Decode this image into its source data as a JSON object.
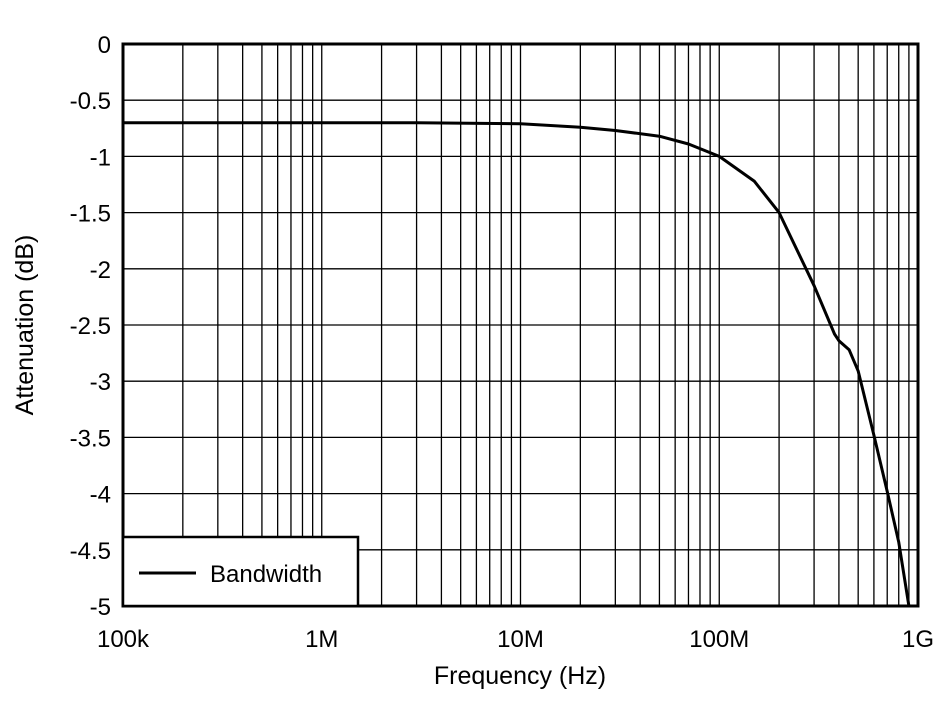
{
  "chart_data": {
    "type": "line",
    "title": "",
    "xlabel": "Frequency (Hz)",
    "ylabel": "Attenuation (dB)",
    "x_scale": "log",
    "xlim": [
      100000,
      1000000000
    ],
    "ylim": [
      -5,
      0
    ],
    "grid": true,
    "legend_position": "bottom-left",
    "x_ticks": [
      {
        "value": 100000,
        "label": "100k"
      },
      {
        "value": 1000000,
        "label": "1M"
      },
      {
        "value": 10000000,
        "label": "10M"
      },
      {
        "value": 100000000,
        "label": "100M"
      },
      {
        "value": 1000000000,
        "label": "1G"
      }
    ],
    "y_ticks": [
      {
        "value": 0,
        "label": "0"
      },
      {
        "value": -0.5,
        "label": "-0.5"
      },
      {
        "value": -1,
        "label": "-1"
      },
      {
        "value": -1.5,
        "label": "-1.5"
      },
      {
        "value": -2,
        "label": "-2"
      },
      {
        "value": -2.5,
        "label": "-2.5"
      },
      {
        "value": -3,
        "label": "-3"
      },
      {
        "value": -3.5,
        "label": "-3.5"
      },
      {
        "value": -4,
        "label": "-4"
      },
      {
        "value": -4.5,
        "label": "-4.5"
      },
      {
        "value": -5,
        "label": "-5"
      }
    ],
    "series": [
      {
        "name": "Bandwidth",
        "color": "#000000",
        "x": [
          100000,
          300000,
          1000000,
          3000000,
          10000000,
          20000000,
          30000000,
          50000000,
          70000000,
          100000000,
          150000000,
          200000000,
          300000000,
          380000000,
          400000000,
          450000000,
          500000000,
          600000000,
          700000000,
          800000000,
          900000000
        ],
        "y": [
          -0.7,
          -0.7,
          -0.7,
          -0.7,
          -0.71,
          -0.74,
          -0.77,
          -0.82,
          -0.89,
          -1.0,
          -1.22,
          -1.5,
          -2.15,
          -2.58,
          -2.64,
          -2.72,
          -2.91,
          -3.48,
          -3.98,
          -4.43,
          -5.0
        ]
      }
    ]
  }
}
